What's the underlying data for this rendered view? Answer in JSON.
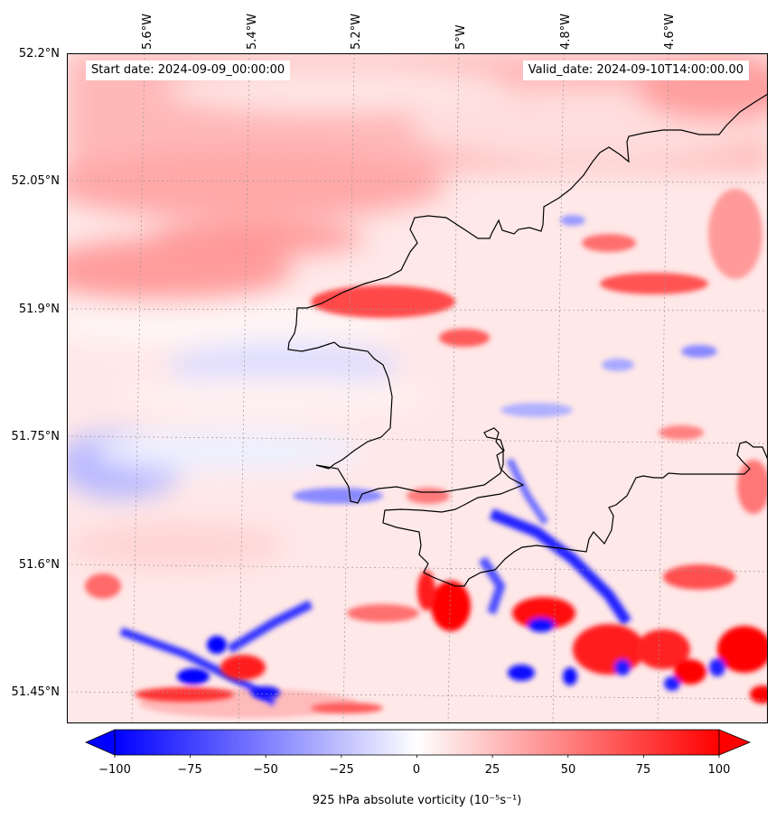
{
  "map": {
    "start_date": "Start date: 2024-09-09_00:00:00",
    "valid_date": "Valid_date: 2024-09-10T14:00:00.00",
    "lat_labels": [
      "52.2°N",
      "52.05°N",
      "51.9°N",
      "51.75°N",
      "51.6°N",
      "51.45°N"
    ],
    "lon_labels": [
      "5.6°W",
      "5.4°W",
      "5.2°W",
      "5°W",
      "4.8°W",
      "4.6°W"
    ],
    "colors": {
      "blue": "#0000ff",
      "red": "#ff0000",
      "white": "#ffffff",
      "coast": "#000000"
    }
  },
  "colorbar": {
    "ticks": [
      "−100",
      "−75",
      "−50",
      "−25",
      "0",
      "25",
      "50",
      "75",
      "100"
    ],
    "label": "925 hPa absolute vorticity (10⁻⁵s⁻¹)",
    "min": -100,
    "max": 100,
    "extend": "both"
  }
}
